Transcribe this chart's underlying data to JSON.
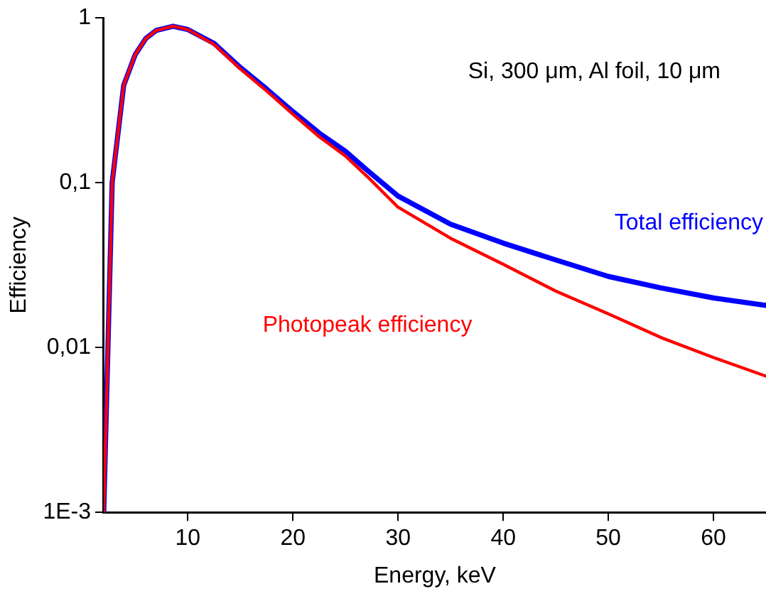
{
  "chart_data": {
    "type": "line",
    "xlabel": "Energy, keV",
    "ylabel": "Efficiency",
    "annotations": [
      "Si, 300 μm, Al foil, 10 μm"
    ],
    "log": "y",
    "grid": false,
    "legend": false,
    "marker": "none",
    "line_style": "solid",
    "xlim": [
      2,
      65
    ],
    "xticks": [
      10,
      20,
      30,
      40,
      50,
      60
    ],
    "ylim": [
      0.001,
      1
    ],
    "yticks": [
      {
        "value": 0.001,
        "label": "1E-3"
      },
      {
        "value": 0.01,
        "label": "0,01"
      },
      {
        "value": 0.1,
        "label": "0,1"
      },
      {
        "value": 1,
        "label": "1"
      }
    ],
    "series": [
      {
        "name": "Total efficiency",
        "color": "#0000ff",
        "x": [
          2,
          2.4,
          2.8,
          3.9,
          5,
          6,
          7,
          8.6,
          10,
          12.5,
          15,
          17.5,
          20,
          22.5,
          25,
          27.2,
          30,
          35,
          40,
          45,
          50,
          55,
          60,
          65
        ],
        "values": [
          0.001,
          0.01,
          0.1,
          0.39,
          0.6,
          0.75,
          0.84,
          0.89,
          0.85,
          0.7,
          0.5,
          0.37,
          0.27,
          0.2,
          0.155,
          0.117,
          0.083,
          0.056,
          0.043,
          0.034,
          0.027,
          0.023,
          0.02,
          0.018
        ]
      },
      {
        "name": "Photopeak efficiency",
        "color": "#ff0000",
        "x": [
          2,
          2.4,
          2.8,
          3.9,
          5,
          6,
          7,
          8.6,
          10,
          12.5,
          15,
          17.5,
          20,
          22.5,
          25,
          27.2,
          30,
          35,
          40,
          45,
          50,
          55,
          60,
          65
        ],
        "values": [
          0.001,
          0.01,
          0.1,
          0.39,
          0.6,
          0.75,
          0.84,
          0.89,
          0.85,
          0.69,
          0.49,
          0.36,
          0.26,
          0.19,
          0.145,
          0.107,
          0.071,
          0.046,
          0.032,
          0.022,
          0.016,
          0.0115,
          0.0087,
          0.0067
        ]
      }
    ]
  }
}
